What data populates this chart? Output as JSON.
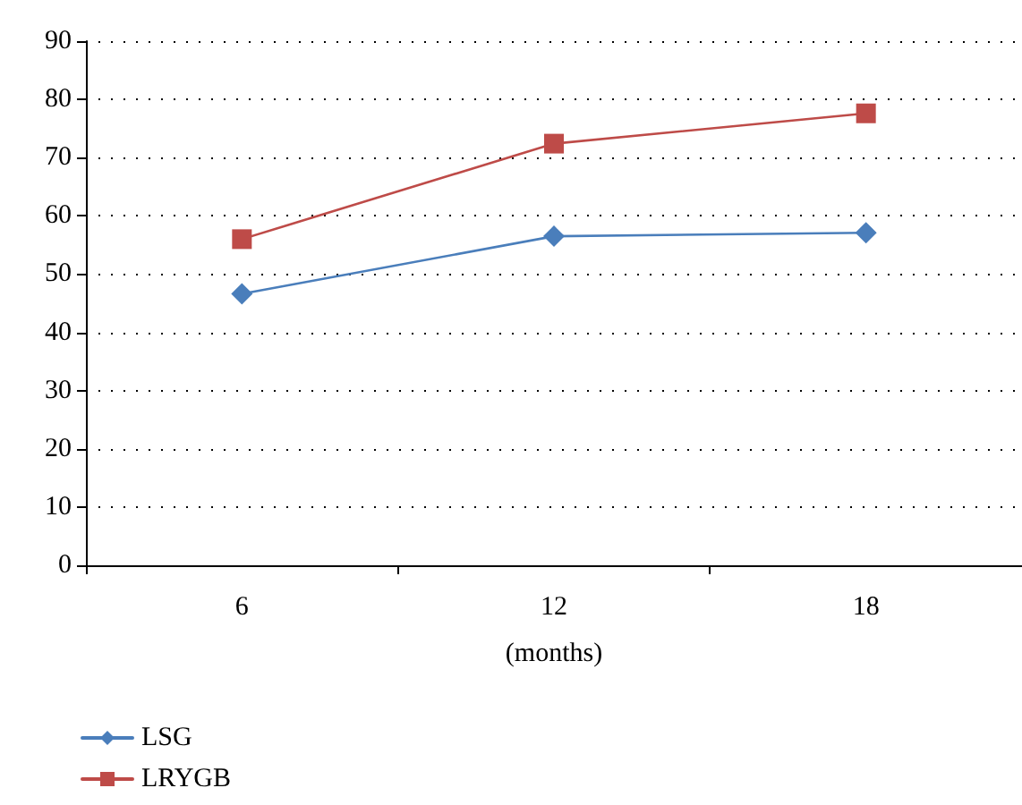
{
  "chart_data": {
    "type": "line",
    "xlabel": "(months)",
    "categories": [
      "6",
      "12",
      "18"
    ],
    "series": [
      {
        "name": "LSG",
        "color": "#4a7ebb",
        "marker": "diamond",
        "values": [
          46.6,
          56.5,
          57.1
        ]
      },
      {
        "name": "LRYGB",
        "color": "#be4b48",
        "marker": "square",
        "values": [
          56.0,
          72.4,
          77.6
        ]
      }
    ],
    "ylim": [
      0,
      90
    ],
    "yticks": [
      0,
      10,
      20,
      30,
      40,
      50,
      60,
      70,
      80,
      90
    ],
    "grid": "y",
    "legend": "bottom left"
  }
}
